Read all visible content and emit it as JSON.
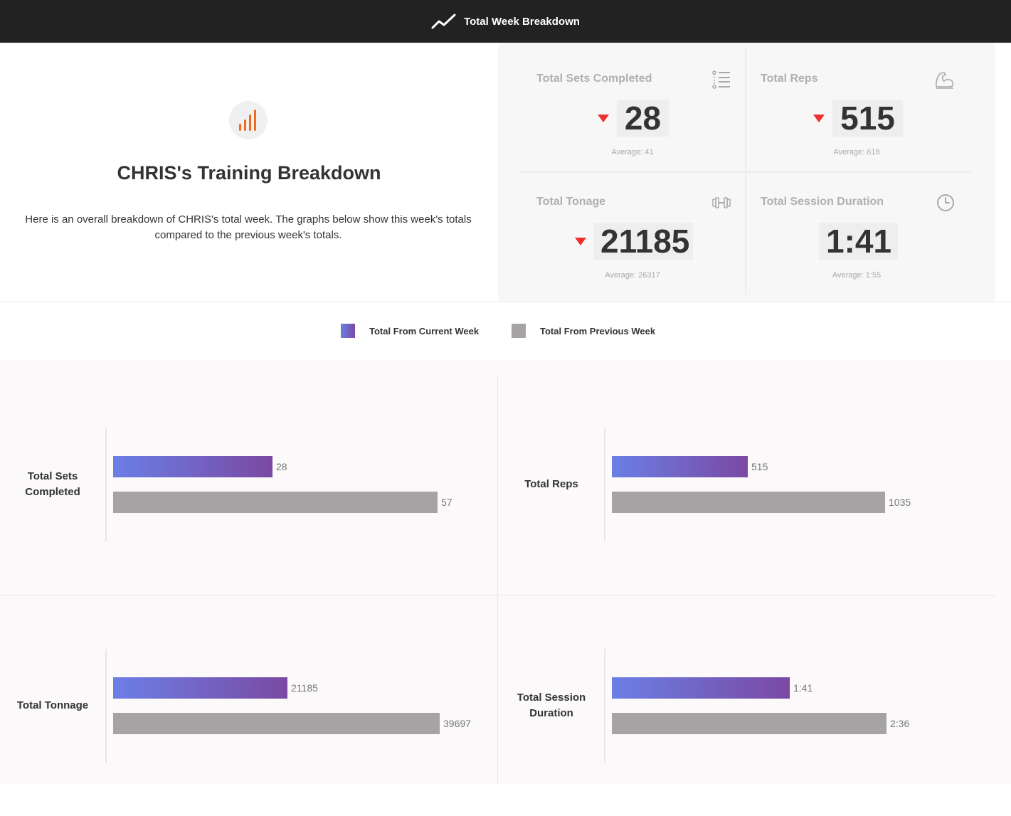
{
  "header": {
    "title": "Total Week Breakdown"
  },
  "intro": {
    "title": "CHRIS's Training Breakdown",
    "description": "Here is an overall breakdown of CHRIS's total week. The graphs below show this week's totals compared to the previous week's totals."
  },
  "stats": [
    {
      "label": "Total Sets Completed",
      "value": "28",
      "average": "Average: 41",
      "trend": "down",
      "icon": "list-icon"
    },
    {
      "label": "Total Reps",
      "value": "515",
      "average": "Average: 618",
      "trend": "down",
      "icon": "flexed-arm-icon"
    },
    {
      "label": "Total Tonage",
      "value": "21185",
      "average": "Average: 26317",
      "trend": "down",
      "icon": "dumbbell-icon"
    },
    {
      "label": "Total Session Duration",
      "value": "1:41",
      "average": "Average: 1:55",
      "trend": "none",
      "icon": "clock-icon"
    }
  ],
  "legend": {
    "current": "Total From Current Week",
    "previous": "Total From Previous Week"
  },
  "colors": {
    "current_start": "#6b7fe6",
    "current_end": "#7a49a2",
    "previous": "#a5a3a4",
    "down_arrow": "#ee3030",
    "accent_orange": "#f06a1f"
  },
  "chart_data": [
    {
      "type": "bar",
      "title": "Total Sets Completed",
      "categories": [
        "Total From Current Week",
        "Total From Previous Week"
      ],
      "values": [
        28,
        57
      ],
      "value_labels": [
        "28",
        "57"
      ],
      "xlim": [
        0,
        65
      ]
    },
    {
      "type": "bar",
      "title": "Total Reps",
      "categories": [
        "Total From Current Week",
        "Total From Previous Week"
      ],
      "values": [
        515,
        1035
      ],
      "value_labels": [
        "515",
        "1035"
      ],
      "xlim": [
        0,
        1400
      ]
    },
    {
      "type": "bar",
      "title": "Total Tonnage",
      "categories": [
        "Total From Current Week",
        "Total From Previous Week"
      ],
      "values": [
        21185,
        39697
      ],
      "value_labels": [
        "21185",
        "39697"
      ],
      "xlim": [
        0,
        45000
      ]
    },
    {
      "type": "bar",
      "title": "Total Session Duration",
      "categories": [
        "Total From Current Week",
        "Total From Previous Week"
      ],
      "values": [
        101,
        156
      ],
      "value_labels": [
        "1:41",
        "2:36"
      ],
      "xlim": [
        0,
        210
      ]
    }
  ]
}
